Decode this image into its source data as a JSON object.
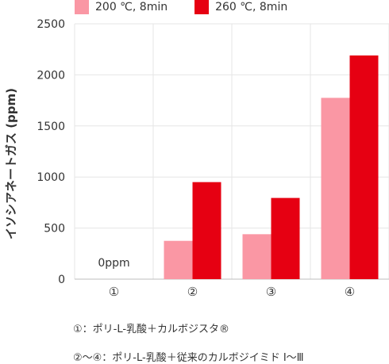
{
  "chart_data": {
    "type": "bar",
    "categories": [
      "①",
      "②",
      "③",
      "④"
    ],
    "series": [
      {
        "name": "200 ℃, 8min",
        "values": [
          0,
          375,
          440,
          1775
        ]
      },
      {
        "name": "260 ℃, 8min",
        "values": [
          0,
          950,
          795,
          2190
        ]
      }
    ],
    "ylabel": "イソシアネートガス (ppm)",
    "ylim": [
      0,
      2500
    ],
    "yticks": [
      "0",
      "500",
      "1000",
      "1500",
      "2000",
      "2500"
    ],
    "annotation": "0ppm",
    "grid": true,
    "legend_position": "top-left",
    "colors": [
      "#fa97a4",
      "#e60012"
    ]
  },
  "footnotes": [
    "①：ポリ-L-乳酸＋カルボジスタ®",
    "②〜④：ポリ-L-乳酸＋従来のカルボジイミド Ⅰ〜Ⅲ"
  ]
}
